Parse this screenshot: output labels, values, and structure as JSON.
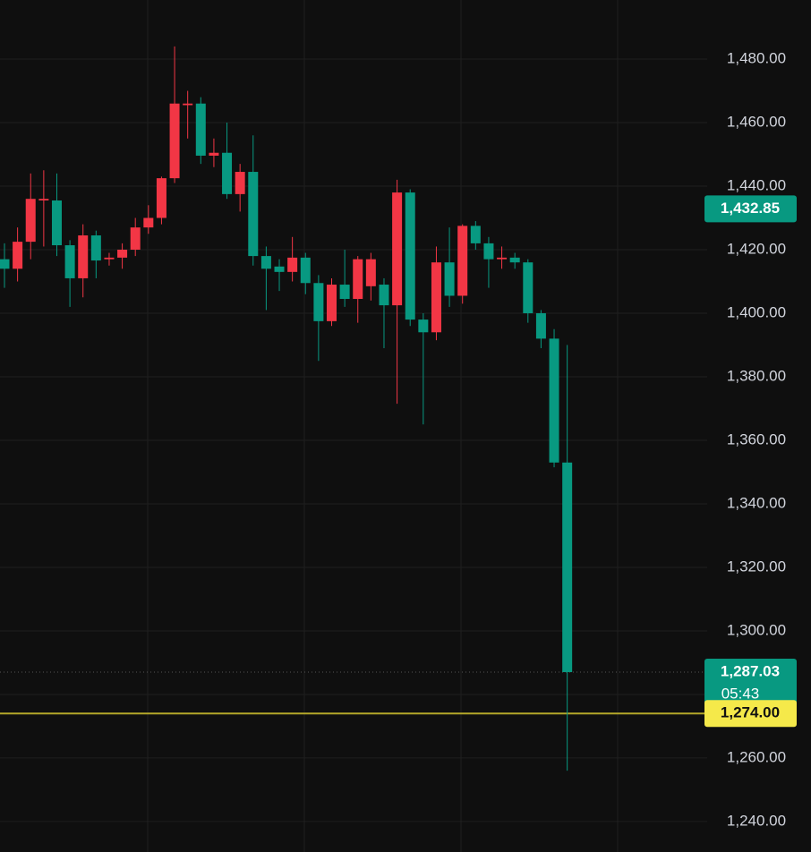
{
  "chart_data": {
    "type": "candlestick",
    "up_color": "#f23645",
    "down_color": "#089981",
    "grid": true,
    "ylim": [
      1230.4,
      1498.6
    ],
    "yticks": [
      {
        "value": 1240,
        "label": "1,240.00"
      },
      {
        "value": 1260,
        "label": "1,260.00"
      },
      {
        "value": 1280,
        "label": "1,280.00"
      },
      {
        "value": 1300,
        "label": "1,300.00"
      },
      {
        "value": 1320,
        "label": "1,320.00"
      },
      {
        "value": 1340,
        "label": "1,340.00"
      },
      {
        "value": 1360,
        "label": "1,360.00"
      },
      {
        "value": 1380,
        "label": "1,380.00"
      },
      {
        "value": 1400,
        "label": "1,400.00"
      },
      {
        "value": 1420,
        "label": "1,420.00"
      },
      {
        "value": 1440,
        "label": "1,440.00"
      },
      {
        "value": 1460,
        "label": "1,460.00"
      },
      {
        "value": 1480,
        "label": "1,480.00"
      }
    ],
    "open": [
      1417,
      1414,
      1422.5,
      1435.5,
      1435.5,
      1421.4,
      1411,
      1424.5,
      1417,
      1417.5,
      1420,
      1427,
      1430,
      1442.5,
      1465.5,
      1466,
      1449.6,
      1450.5,
      1437.5,
      1444.5,
      1418,
      1414.7,
      1413,
      1417.5,
      1409.5,
      1397.5,
      1409,
      1404.5,
      1408.5,
      1409,
      1402.5,
      1438,
      1398,
      1394,
      1416,
      1405.5,
      1427.5,
      1422,
      1417,
      1417.5,
      1416,
      1400,
      1392,
      1353
    ],
    "high": [
      1422,
      1427,
      1444,
      1445,
      1444,
      1423,
      1428,
      1426,
      1419,
      1422,
      1430,
      1434,
      1443,
      1484,
      1470,
      1468,
      1455,
      1460,
      1447,
      1456,
      1421,
      1417,
      1424,
      1419,
      1412,
      1411,
      1420,
      1418,
      1419,
      1411,
      1442,
      1439,
      1400,
      1421,
      1427,
      1428,
      1429,
      1424,
      1421,
      1419,
      1417,
      1401,
      1395,
      1390
    ],
    "low": [
      1408,
      1410,
      1417,
      1421,
      1418,
      1402,
      1405,
      1411,
      1415,
      1414,
      1418,
      1425,
      1428,
      1441,
      1455,
      1447,
      1446,
      1436,
      1432,
      1415,
      1401,
      1407,
      1410,
      1406,
      1385,
      1396,
      1402,
      1397,
      1404,
      1389,
      1371.5,
      1396,
      1365,
      1391.5,
      1402,
      1403,
      1420,
      1408,
      1414,
      1414,
      1397,
      1389,
      1351.5,
      1256
    ],
    "close": [
      1414,
      1422.5,
      1436,
      1436,
      1421.4,
      1411,
      1424.5,
      1416.6,
      1417.5,
      1420,
      1427,
      1430,
      1442.5,
      1466,
      1466,
      1449.6,
      1450.5,
      1437.5,
      1444.5,
      1418,
      1414,
      1413,
      1417.5,
      1409.5,
      1397.5,
      1409,
      1404.5,
      1417,
      1417,
      1402.5,
      1438,
      1398,
      1394,
      1416,
      1405.5,
      1427.5,
      1422,
      1417,
      1417.5,
      1416,
      1400,
      1392,
      1353,
      1287.03
    ],
    "price_labels": [
      {
        "value": 1432.85,
        "label": "1,432.85",
        "color": "#089981",
        "text_color": "#ffffff",
        "line": false
      },
      {
        "value": 1287.03,
        "label": "1,287.03",
        "countdown": "05:43",
        "color": "#089981",
        "text_color": "#ffffff",
        "line": true,
        "line_style": "dotted"
      },
      {
        "value": 1274,
        "label": "1,274.00",
        "color": "#f5e94a",
        "text_color": "#111111",
        "line": true,
        "line_style": "solid",
        "line_color": "#b5a82a"
      }
    ]
  }
}
